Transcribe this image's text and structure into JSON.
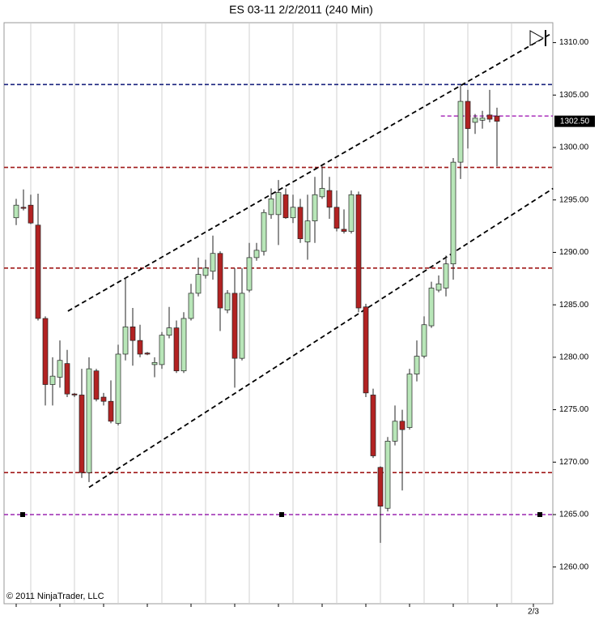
{
  "chart_data": {
    "type": "candlestick",
    "title": "ES 03-11  2/2/2011 (240 Min)",
    "copyright": "© 2011 NinjaTrader, LLC",
    "categories": [
      null,
      null,
      null,
      null,
      null,
      null,
      null,
      null,
      null,
      null,
      null,
      null,
      null,
      null,
      null,
      null,
      null,
      null,
      null,
      null,
      null,
      null,
      null,
      null,
      null,
      null,
      null,
      null,
      null,
      null,
      null,
      null,
      null,
      null,
      null,
      null,
      null,
      null,
      null,
      null,
      null,
      null,
      null,
      null,
      null,
      null,
      null,
      null,
      null,
      null,
      null,
      null,
      null,
      null,
      null,
      null,
      null,
      null,
      null,
      null,
      null,
      null,
      null,
      null,
      null,
      null,
      null
    ],
    "x_labels": [
      {
        "position": 71,
        "label": "2/3"
      }
    ],
    "up_color": "#b8e6b8",
    "down_color": "#b22222",
    "open": [
      1293.3,
      1294.3,
      1294.5,
      1292.6,
      1283.7,
      1277.4,
      1278.1,
      1279.4,
      1276.5,
      1276.4,
      1269,
      1278.7,
      1276.2,
      1275.8,
      1273.7,
      1280.3,
      1282.9,
      1281.6,
      1280.4,
      1279.3,
      1279.3,
      1282.1,
      1282.8,
      1278.7,
      1283.7,
      1286.1,
      1287.8,
      1288.2,
      1289.9,
      1284.5,
      1286.1,
      1279.9,
      1286.4,
      1289.5,
      1290.1,
      1293.6,
      1293.6,
      1295.5,
      1293.3,
      1294.3,
      1291,
      1293,
      1295.3,
      1295.9,
      1294.3,
      1292.2,
      1292,
      1295.5,
      1284.8,
      1276.4,
      1269.5,
      1265.6,
      1272,
      1273.9,
      1273.3,
      1278.4,
      1280.1,
      1283,
      1286.4,
      1286.6,
      1288.9,
      1298.6,
      1304.4,
      1302.4,
      1302.6,
      1303.1,
      1303
    ],
    "high": [
      1295.1,
      1296,
      1295.5,
      1295.6,
      1283.9,
      1280,
      1281.6,
      1280.7,
      1276.6,
      1278.9,
      1280,
      1278.9,
      1276.6,
      1277.8,
      1281.2,
      1287.6,
      1284.7,
      1283.1,
      1280.5,
      1280,
      1282.4,
      1284.8,
      1283.5,
      1284.3,
      1287,
      1289.5,
      1289.3,
      1291.6,
      1290.1,
      1286.4,
      1288.5,
      1288.5,
      1290.9,
      1290.9,
      1294.1,
      1296.1,
      1296.9,
      1296.1,
      1295.5,
      1295.1,
      1295.5,
      1297.2,
      1298.2,
      1297.2,
      1295.9,
      1294.1,
      1295.9,
      1295.8,
      1285.1,
      1277,
      1269.6,
      1272.4,
      1275.4,
      1275,
      1278.9,
      1281.6,
      1283.9,
      1287.2,
      1287.8,
      1289.7,
      1299,
      1305.9,
      1305.5,
      1303.2,
      1303.5,
      1305.5,
      1303.8
    ],
    "low": [
      1292.6,
      1294,
      1292.7,
      1283.5,
      1275.4,
      1275.4,
      1277.1,
      1276.2,
      1276.2,
      1268.5,
      1268.1,
      1275.8,
      1275.4,
      1273.7,
      1273.5,
      1279.7,
      1279.2,
      1280,
      1280.2,
      1278.1,
      1278.9,
      1281.8,
      1278.5,
      1278.5,
      1283.5,
      1285.8,
      1287.5,
      1287.4,
      1282.5,
      1284.2,
      1277.1,
      1279.7,
      1286.2,
      1289.2,
      1289.7,
      1293.2,
      1290.7,
      1293.2,
      1292.8,
      1290.9,
      1289.3,
      1290.9,
      1295.1,
      1293.2,
      1292,
      1291.8,
      1291.8,
      1284.3,
      1276.2,
      1270.4,
      1262.3,
      1265.3,
      1271.6,
      1267.3,
      1273.1,
      1277.7,
      1279.9,
      1282.8,
      1286.2,
      1285.8,
      1287.4,
      1297,
      1299.9,
      1301.3,
      1301.8,
      1302.4,
      1298.2
    ],
    "close": [
      1294.5,
      1294.2,
      1292.8,
      1283.7,
      1277.4,
      1278.2,
      1279.7,
      1276.5,
      1276.4,
      1269,
      1278.9,
      1276,
      1275.8,
      1273.9,
      1280.3,
      1282.9,
      1281.6,
      1280.3,
      1280.3,
      1279.5,
      1282.1,
      1282.8,
      1278.7,
      1283.7,
      1286.1,
      1287.9,
      1288.5,
      1289.9,
      1284.7,
      1286.1,
      1279.9,
      1286.1,
      1289.5,
      1290.2,
      1293.8,
      1295.1,
      1295.7,
      1293.3,
      1294.3,
      1291.3,
      1293,
      1295.5,
      1296.1,
      1294.3,
      1292.3,
      1292,
      1295.5,
      1284.7,
      1276.6,
      1270.6,
      1265.8,
      1272,
      1273.9,
      1273.1,
      1278.4,
      1280.1,
      1283.1,
      1286.6,
      1287,
      1288.9,
      1298.6,
      1304.4,
      1301.8,
      1302.8,
      1302.8,
      1302.7,
      1302.5
    ],
    "last_price": {
      "value": 1302.5,
      "label": "1302.50"
    },
    "levels": [
      {
        "value": 1306,
        "color": "#1a237e"
      },
      {
        "value": 1298.1,
        "color": "#a01818"
      },
      {
        "value": 1288.5,
        "color": "#a01818"
      },
      {
        "value": 1269,
        "color": "#a01818"
      },
      {
        "value": 1265,
        "color": "#9c27b0"
      },
      {
        "value": 1303,
        "color": "#b040c0",
        "from": 58.3
      }
    ],
    "channels": [
      {
        "start": [
          7.1,
          1284.4
        ],
        "end": [
          73.3,
          1310.8
        ]
      },
      {
        "start": [
          10,
          1267.6
        ],
        "end": [
          73.7,
          1296.1
        ]
      }
    ],
    "ylim": [
      1256.5,
      1311.9
    ],
    "yticks": [
      {
        "value": 1260,
        "label": "1260.00"
      },
      {
        "value": 1265,
        "label": "1265.00"
      },
      {
        "value": 1270,
        "label": "1270.00"
      },
      {
        "value": 1275,
        "label": "1275.00"
      },
      {
        "value": 1280,
        "label": "1280.00"
      },
      {
        "value": 1285,
        "label": "1285.00"
      },
      {
        "value": 1290,
        "label": "1290.00"
      },
      {
        "value": 1295,
        "label": "1295.00"
      },
      {
        "value": 1300,
        "label": "1300.00"
      },
      {
        "value": 1305,
        "label": "1305.00"
      },
      {
        "value": 1310,
        "label": "1310.00"
      }
    ]
  }
}
